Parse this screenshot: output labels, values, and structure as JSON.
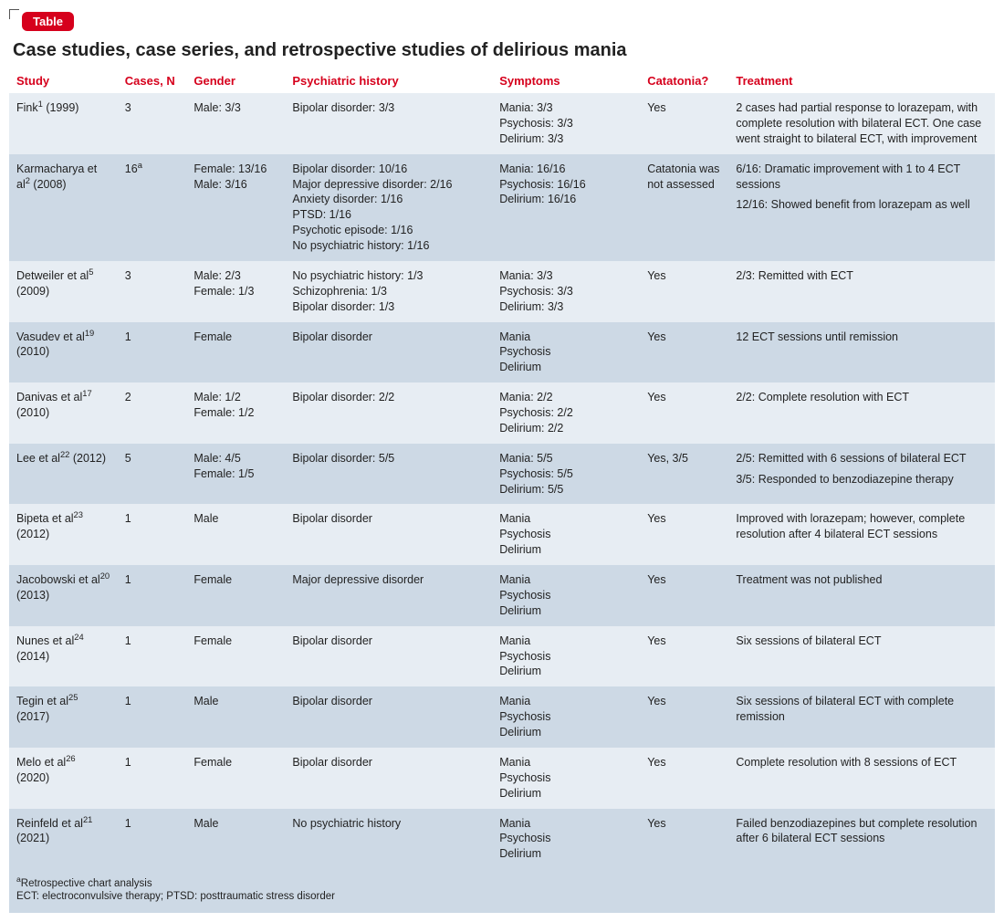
{
  "badge": "Table",
  "title": "Case studies, case series, and retrospective studies of delirious mania",
  "columns": [
    "Study",
    "Cases, N",
    "Gender",
    "Psychiatric history",
    "Symptoms",
    "Catatonia?",
    "Treatment"
  ],
  "rows": [
    {
      "study": {
        "text": "Fink",
        "sup": "1",
        "year": "(1999)"
      },
      "cases": {
        "text": "3"
      },
      "gender": [
        "Male: 3/3"
      ],
      "history": [
        "Bipolar disorder: 3/3"
      ],
      "symptoms": [
        "Mania: 3/3",
        "Psychosis: 3/3",
        "Delirium: 3/3"
      ],
      "catatonia": [
        "Yes"
      ],
      "treatment": [
        "2 cases had partial response to lorazepam, with complete resolution with bilateral ECT. One case went straight to bilateral ECT, with improvement"
      ]
    },
    {
      "study": {
        "text": "Karmacharya et al",
        "sup": "2",
        "year": "(2008)"
      },
      "cases": {
        "text": "16",
        "sup": "a"
      },
      "gender": [
        "Female: 13/16",
        "Male: 3/16"
      ],
      "history": [
        "Bipolar disorder: 10/16",
        "Major depressive disorder: 2/16",
        "Anxiety disorder: 1/16",
        "PTSD: 1/16",
        "Psychotic episode: 1/16",
        "No psychiatric history: 1/16"
      ],
      "symptoms": [
        "Mania: 16/16",
        "Psychosis: 16/16",
        "Delirium: 16/16"
      ],
      "catatonia": [
        "Catatonia was not assessed"
      ],
      "treatment": [
        "6/16: Dramatic improvement with 1 to 4 ECT sessions",
        "12/16: Showed benefit from lorazepam as well"
      ]
    },
    {
      "study": {
        "text": "Detweiler et al",
        "sup": "5",
        "year": "(2009)"
      },
      "cases": {
        "text": "3"
      },
      "gender": [
        "Male: 2/3",
        "Female: 1/3"
      ],
      "history": [
        "No psychiatric history: 1/3",
        "Schizophrenia: 1/3",
        "Bipolar disorder: 1/3"
      ],
      "symptoms": [
        "Mania: 3/3",
        "Psychosis: 3/3",
        "Delirium: 3/3"
      ],
      "catatonia": [
        "Yes"
      ],
      "treatment": [
        "2/3: Remitted with ECT"
      ]
    },
    {
      "study": {
        "text": "Vasudev et al",
        "sup": "19",
        "year": "(2010)"
      },
      "cases": {
        "text": "1"
      },
      "gender": [
        "Female"
      ],
      "history": [
        "Bipolar disorder"
      ],
      "symptoms": [
        "Mania",
        "Psychosis",
        "Delirium"
      ],
      "catatonia": [
        "Yes"
      ],
      "treatment": [
        "12 ECT sessions until remission"
      ]
    },
    {
      "study": {
        "text": "Danivas et al",
        "sup": "17",
        "year": "(2010)"
      },
      "cases": {
        "text": "2"
      },
      "gender": [
        "Male: 1/2",
        "Female: 1/2"
      ],
      "history": [
        "Bipolar disorder: 2/2"
      ],
      "symptoms": [
        "Mania: 2/2",
        "Psychosis: 2/2",
        "Delirium: 2/2"
      ],
      "catatonia": [
        "Yes"
      ],
      "treatment": [
        "2/2: Complete resolution with ECT"
      ]
    },
    {
      "study": {
        "text": "Lee et al",
        "sup": "22",
        "year": "(2012)"
      },
      "cases": {
        "text": "5"
      },
      "gender": [
        "Male: 4/5",
        "Female: 1/5"
      ],
      "history": [
        "Bipolar disorder: 5/5"
      ],
      "symptoms": [
        "Mania: 5/5",
        "Psychosis: 5/5",
        "Delirium: 5/5"
      ],
      "catatonia": [
        "Yes, 3/5"
      ],
      "treatment": [
        "2/5: Remitted with 6 sessions of bilateral ECT",
        "3/5: Responded to benzodiazepine therapy"
      ]
    },
    {
      "study": {
        "text": "Bipeta et al",
        "sup": "23",
        "year": "(2012)"
      },
      "cases": {
        "text": "1"
      },
      "gender": [
        "Male"
      ],
      "history": [
        "Bipolar disorder"
      ],
      "symptoms": [
        "Mania",
        "Psychosis",
        "Delirium"
      ],
      "catatonia": [
        "Yes"
      ],
      "treatment": [
        "Improved with lorazepam; however, complete resolution after 4 bilateral ECT sessions"
      ]
    },
    {
      "study": {
        "text": "Jacobowski et al",
        "sup": "20",
        "year": "(2013)"
      },
      "cases": {
        "text": "1"
      },
      "gender": [
        "Female"
      ],
      "history": [
        "Major depressive disorder"
      ],
      "symptoms": [
        "Mania",
        "Psychosis",
        "Delirium"
      ],
      "catatonia": [
        "Yes"
      ],
      "treatment": [
        "Treatment was not published"
      ]
    },
    {
      "study": {
        "text": "Nunes et al",
        "sup": "24",
        "year": "(2014)"
      },
      "cases": {
        "text": "1"
      },
      "gender": [
        "Female"
      ],
      "history": [
        "Bipolar disorder"
      ],
      "symptoms": [
        "Mania",
        "Psychosis",
        "Delirium"
      ],
      "catatonia": [
        "Yes"
      ],
      "treatment": [
        "Six sessions of bilateral ECT"
      ]
    },
    {
      "study": {
        "text": "Tegin et al",
        "sup": "25",
        "year": "(2017)"
      },
      "cases": {
        "text": "1"
      },
      "gender": [
        "Male"
      ],
      "history": [
        "Bipolar disorder"
      ],
      "symptoms": [
        "Mania",
        "Psychosis",
        "Delirium"
      ],
      "catatonia": [
        "Yes"
      ],
      "treatment": [
        "Six sessions of bilateral ECT with complete remission"
      ]
    },
    {
      "study": {
        "text": "Melo et al",
        "sup": "26",
        "year": "(2020)"
      },
      "cases": {
        "text": "1"
      },
      "gender": [
        "Female"
      ],
      "history": [
        "Bipolar disorder"
      ],
      "symptoms": [
        "Mania",
        "Psychosis",
        "Delirium"
      ],
      "catatonia": [
        "Yes"
      ],
      "treatment": [
        "Complete resolution with 8 sessions of ECT"
      ]
    },
    {
      "study": {
        "text": "Reinfeld et al",
        "sup": "21",
        "year": "(2021)"
      },
      "cases": {
        "text": "1"
      },
      "gender": [
        "Male"
      ],
      "history": [
        "No psychiatric history"
      ],
      "symptoms": [
        "Mania",
        "Psychosis",
        "Delirium"
      ],
      "catatonia": [
        "Yes"
      ],
      "treatment": [
        "Failed benzodiazepines but complete resolution after 6 bilateral ECT sessions"
      ]
    }
  ],
  "footnotes": {
    "a": "Retrospective chart analysis",
    "abbrev": "ECT: electroconvulsive therapy; PTSD: posttraumatic stress disorder"
  },
  "colors": {
    "accent": "#d6001c",
    "row_light": "#e7edf3",
    "row_dark": "#cdd9e5",
    "text": "#222222",
    "background": "#ffffff"
  }
}
